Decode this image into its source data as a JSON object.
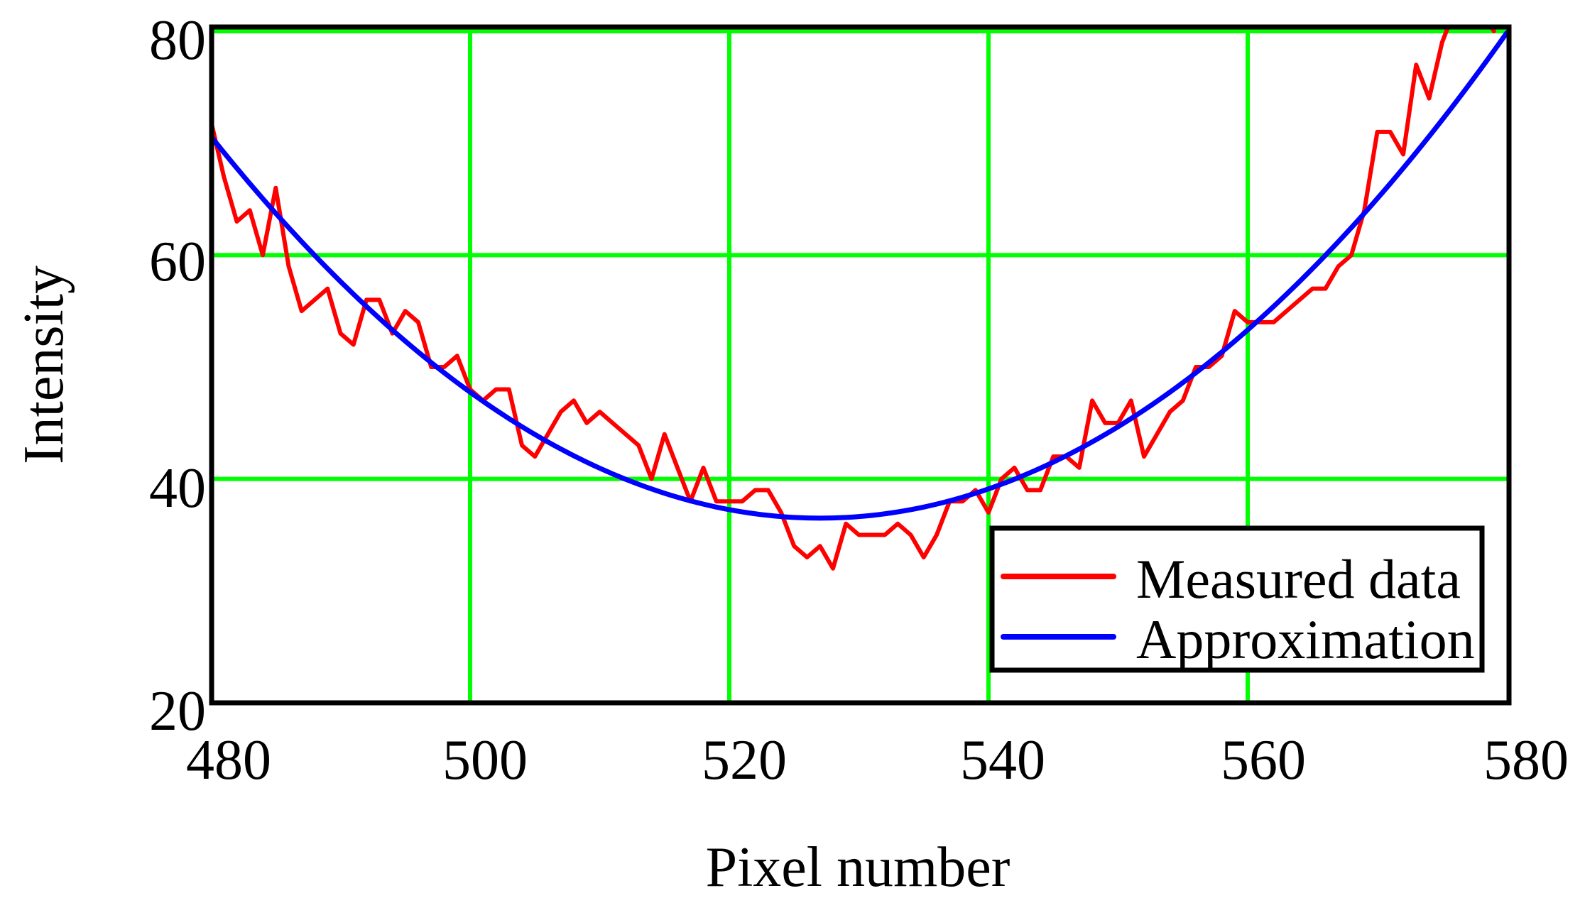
{
  "chart_data": {
    "type": "line",
    "title": "",
    "xlabel": "Pixel number",
    "ylabel": "Intensity",
    "xlim": [
      480,
      580
    ],
    "ylim": [
      20,
      80
    ],
    "x_ticks": [
      480,
      500,
      520,
      540,
      560,
      580
    ],
    "y_ticks": [
      20,
      40,
      60,
      80
    ],
    "grid": true,
    "grid_color": "#00ff00",
    "legend_position": "lower right",
    "legend": [
      {
        "label": "Measured data",
        "color": "#ff0000"
      },
      {
        "label": "Approximation",
        "color": "#0000ff"
      }
    ],
    "series": [
      {
        "name": "Measured data",
        "color": "#ff0000",
        "x": [
          480,
          481,
          482,
          483,
          484,
          485,
          486,
          487,
          488,
          489,
          490,
          491,
          492,
          493,
          494,
          495,
          496,
          497,
          498,
          499,
          500,
          501,
          502,
          503,
          504,
          505,
          506,
          507,
          508,
          509,
          510,
          511,
          512,
          513,
          514,
          515,
          516,
          517,
          518,
          519,
          520,
          521,
          522,
          523,
          524,
          525,
          526,
          527,
          528,
          529,
          530,
          531,
          532,
          533,
          534,
          535,
          536,
          537,
          538,
          539,
          540,
          541,
          542,
          543,
          544,
          545,
          546,
          547,
          548,
          549,
          550,
          551,
          552,
          553,
          554,
          555,
          556,
          557,
          558,
          559,
          560,
          561,
          562,
          563,
          564,
          565,
          566,
          567,
          568,
          569,
          570,
          571,
          572,
          573,
          574,
          575,
          576,
          577,
          578,
          579
        ],
        "values": [
          72,
          67,
          63,
          64,
          60,
          66,
          59,
          55,
          56,
          57,
          53,
          52,
          56,
          56,
          53,
          55,
          54,
          50,
          50,
          51,
          48,
          47,
          48,
          48,
          43,
          42,
          44,
          46,
          47,
          45,
          46,
          45,
          44,
          43,
          40,
          44,
          41,
          38,
          41,
          38,
          38,
          38,
          39,
          39,
          37,
          34,
          33,
          34,
          32,
          36,
          35,
          35,
          35,
          36,
          35,
          33,
          35,
          38,
          38,
          39,
          37,
          40,
          41,
          39,
          39,
          42,
          42,
          41,
          47,
          45,
          45,
          47,
          42,
          44,
          46,
          47,
          50,
          50,
          51,
          55,
          54,
          54,
          54,
          55,
          56,
          57,
          57,
          59,
          60,
          64,
          71,
          71,
          69,
          77,
          74,
          79,
          82,
          83,
          82,
          80
        ]
      },
      {
        "name": "Approximation",
        "color": "#0000ff",
        "model": "quadratic",
        "vertex_x": 527,
        "vertex_y": 36.5,
        "a": 0.01544,
        "x": [
          480,
          490,
          500,
          510,
          520,
          527,
          530,
          540,
          550,
          560,
          570,
          579.5
        ],
        "values": [
          70.6,
          57.6,
          47.8,
          41.0,
          37.3,
          36.5,
          36.6,
          39.1,
          44.7,
          53.3,
          65.0,
          79.1
        ]
      }
    ]
  },
  "axes": {
    "x_tick_labels": [
      "480",
      "500",
      "520",
      "540",
      "560",
      "580"
    ],
    "y_tick_labels": [
      "20",
      "40",
      "60",
      "80"
    ],
    "xlabel": "Pixel number",
    "ylabel": "Intensity"
  },
  "legend": {
    "items": [
      {
        "label": "Measured data",
        "color": "#ff0000"
      },
      {
        "label": "Approximation",
        "color": "#0000ff"
      }
    ]
  }
}
